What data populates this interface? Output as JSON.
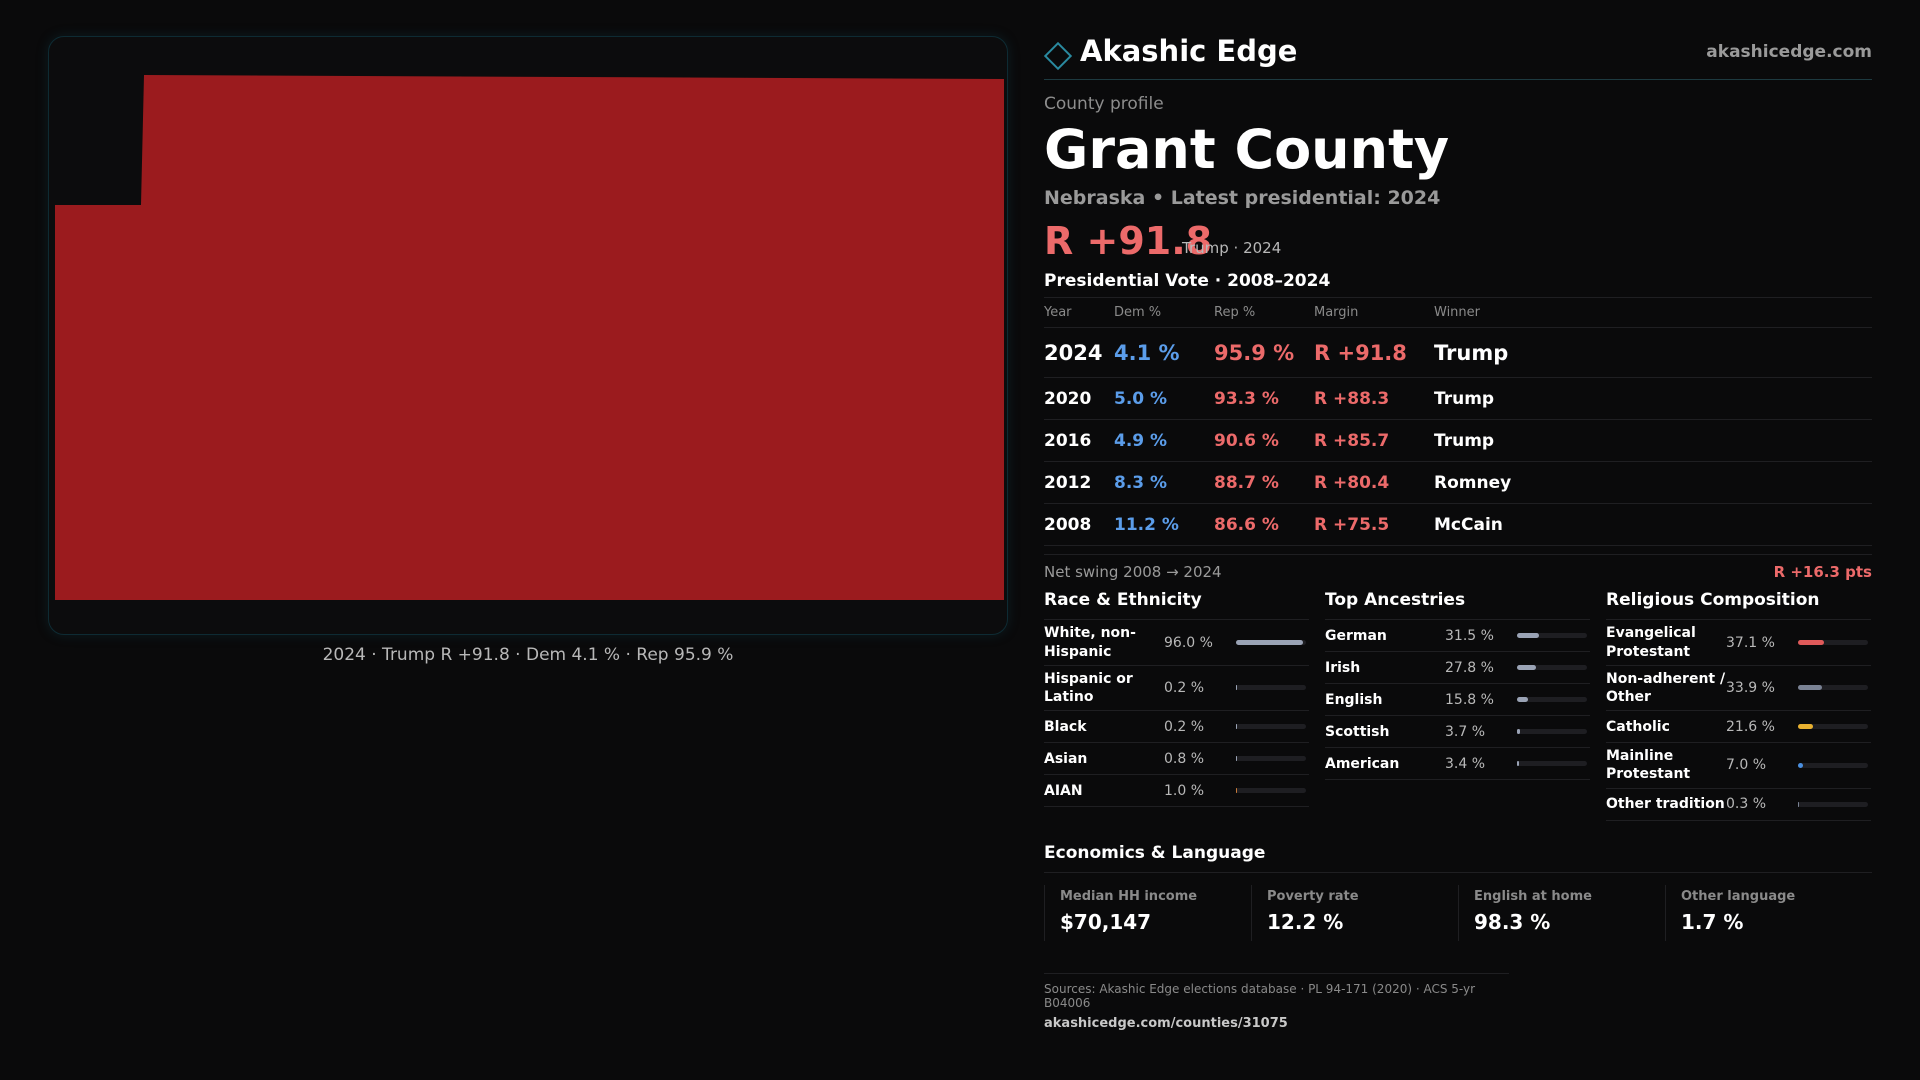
{
  "brand": {
    "name": "Akashic Edge",
    "url": "akashicedge.com"
  },
  "profile": {
    "label": "County profile",
    "county": "Grant County",
    "state_line": "Nebraska • Latest presidential: 2024",
    "headline_margin": "R +91.8",
    "headline_sub": "Trump · 2024"
  },
  "map": {
    "fill_color": "#9b1b1e",
    "caption": "2024 · Trump R +91.8 · Dem 4.1 % · Rep 95.9 %"
  },
  "vote": {
    "title": "Presidential Vote · 2008–2024",
    "headers": {
      "year": "Year",
      "dem": "Dem %",
      "rep": "Rep %",
      "margin": "Margin",
      "winner": "Winner"
    },
    "rows": [
      {
        "year": "2024",
        "dem": "4.1 %",
        "rep": "95.9 %",
        "margin": "R +91.8",
        "winner": "Trump"
      },
      {
        "year": "2020",
        "dem": "5.0 %",
        "rep": "93.3 %",
        "margin": "R +88.3",
        "winner": "Trump"
      },
      {
        "year": "2016",
        "dem": "4.9 %",
        "rep": "90.6 %",
        "margin": "R +85.7",
        "winner": "Trump"
      },
      {
        "year": "2012",
        "dem": "8.3 %",
        "rep": "88.7 %",
        "margin": "R +80.4",
        "winner": "Romney"
      },
      {
        "year": "2008",
        "dem": "11.2 %",
        "rep": "86.6 %",
        "margin": "R +75.5",
        "winner": "McCain"
      }
    ],
    "swing_label": "Net swing 2008 → 2024",
    "swing_value": "R +16.3 pts"
  },
  "race": {
    "title": "Race & Ethnicity",
    "rows": [
      {
        "label": "White, non-Hispanic",
        "value": "96.0 %",
        "fraction": 0.96,
        "color": "#9aa3b5"
      },
      {
        "label": "Hispanic or Latino",
        "value": "0.2 %",
        "fraction": 0.002,
        "color": "#9aa3b5"
      },
      {
        "label": "Black",
        "value": "0.2 %",
        "fraction": 0.002,
        "color": "#9aa3b5"
      },
      {
        "label": "Asian",
        "value": "0.8 %",
        "fraction": 0.008,
        "color": "#9aa3b5"
      },
      {
        "label": "AIAN",
        "value": "1.0 %",
        "fraction": 0.01,
        "color": "#c77a3a"
      }
    ]
  },
  "ancestry": {
    "title": "Top Ancestries",
    "rows": [
      {
        "label": "German",
        "value": "31.5 %",
        "fraction": 0.315,
        "color": "#9aa3b5"
      },
      {
        "label": "Irish",
        "value": "27.8 %",
        "fraction": 0.278,
        "color": "#9aa3b5"
      },
      {
        "label": "English",
        "value": "15.8 %",
        "fraction": 0.158,
        "color": "#9aa3b5"
      },
      {
        "label": "Scottish",
        "value": "3.7 %",
        "fraction": 0.037,
        "color": "#9aa3b5"
      },
      {
        "label": "American",
        "value": "3.4 %",
        "fraction": 0.034,
        "color": "#9aa3b5"
      }
    ]
  },
  "religion": {
    "title": "Religious Composition",
    "rows": [
      {
        "label": "Evangelical Protestant",
        "value": "37.1 %",
        "fraction": 0.371,
        "color": "#e05a5a"
      },
      {
        "label": "Non-adherent / Other",
        "value": "33.9 %",
        "fraction": 0.339,
        "color": "#7a8294"
      },
      {
        "label": "Catholic",
        "value": "21.6 %",
        "fraction": 0.216,
        "color": "#e8b130"
      },
      {
        "label": "Mainline Protestant",
        "value": "7.0 %",
        "fraction": 0.07,
        "color": "#4a8fe0"
      },
      {
        "label": "Other tradition",
        "value": "0.3 %",
        "fraction": 0.003,
        "color": "#7a8294"
      }
    ]
  },
  "economics": {
    "title": "Economics & Language",
    "cells": [
      {
        "label": "Median HH income",
        "value": "$70,147"
      },
      {
        "label": "Poverty rate",
        "value": "12.2 %"
      },
      {
        "label": "English at home",
        "value": "98.3 %"
      },
      {
        "label": "Other language",
        "value": "1.7 %"
      }
    ]
  },
  "sources": {
    "line": "Sources: Akashic Edge elections database · PL 94-171 (2020) · ACS 5-yr B04006",
    "url": "akashicedge.com/counties/31075"
  }
}
